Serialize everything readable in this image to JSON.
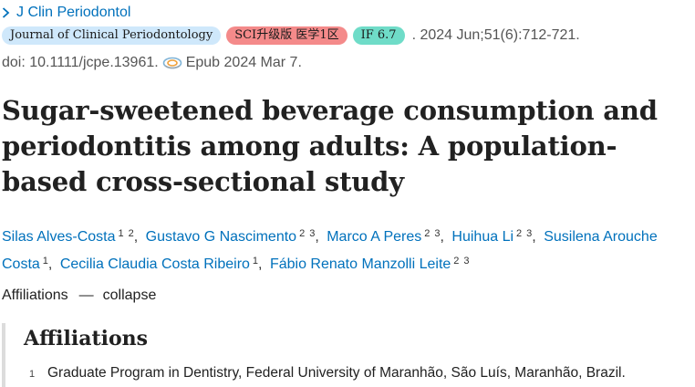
{
  "journal": {
    "abbr": "J Clin Periodontol"
  },
  "badges": {
    "journal_name": "Journal of Clinical Periodontology",
    "sci": "SCI升级版 医学1区",
    "impact": "IF 6.7"
  },
  "citation": ". 2024 Jun;51(6):712-721.",
  "doi": "doi: 10.1111/jcpe.13961.",
  "epub": "Epub 2024 Mar 7.",
  "title": "Sugar-sweetened beverage consumption and periodontitis among adults: A population-based cross-sectional study",
  "authors": [
    {
      "name": "Silas Alves-Costa",
      "affs": [
        "1",
        "2"
      ]
    },
    {
      "name": "Gustavo G Nascimento",
      "affs": [
        "2",
        "3"
      ]
    },
    {
      "name": "Marco A Peres",
      "affs": [
        "2",
        "3"
      ]
    },
    {
      "name": "Huihua Li",
      "affs": [
        "2",
        "3"
      ]
    },
    {
      "name": "Susilena Arouche Costa",
      "affs": [
        "1"
      ]
    },
    {
      "name": "Cecilia Claudia Costa Ribeiro",
      "affs": [
        "1"
      ]
    },
    {
      "name": "Fábio Renato Manzolli Leite",
      "affs": [
        "2",
        "3"
      ]
    }
  ],
  "author_separator": ",",
  "affiliations_toggle": {
    "label": "Affiliations",
    "separator": "—",
    "action": "collapse"
  },
  "affiliations": {
    "heading": "Affiliations",
    "items": [
      {
        "num": "1",
        "text": "Graduate Program in Dentistry, Federal University of Maranhão, São Luís, Maranhão, Brazil."
      }
    ]
  },
  "icons": {
    "journal_chevron": "chevron-right-icon",
    "epub": "epub-icon"
  },
  "colors": {
    "link": "#0071bc",
    "badge_journal": "#cfe8fb",
    "badge_sci": "#f48a8a",
    "badge_if": "#6fdcc8"
  }
}
